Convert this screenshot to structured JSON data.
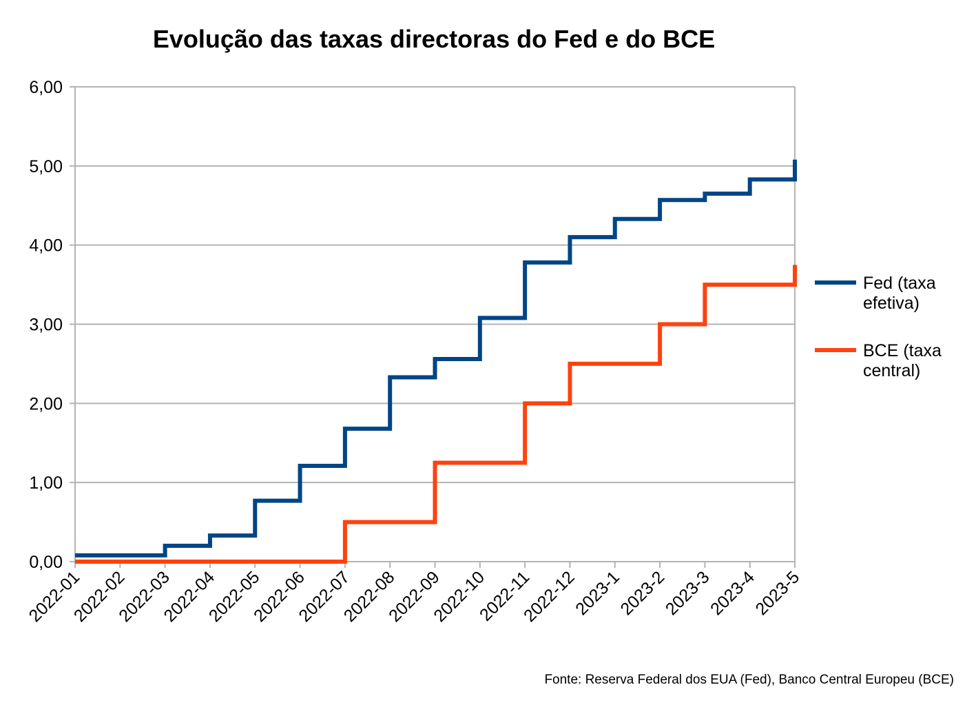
{
  "chart_data": {
    "type": "line",
    "step": true,
    "title": "Evolução das taxas directoras do Fed e do BCE",
    "source": "Fonte: Reserva Federal dos EUA (Fed), Banco Central Europeu (BCE)",
    "xlabel": "",
    "ylabel": "",
    "categories": [
      "2022-01",
      "2022-02",
      "2022-03",
      "2022-04",
      "2022-05",
      "2022-06",
      "2022-07",
      "2022-08",
      "2022-09",
      "2022-10",
      "2022-11",
      "2022-12",
      "2023-1",
      "2023-2",
      "2023-3",
      "2023-4",
      "2023-5"
    ],
    "ylim": [
      0,
      6
    ],
    "yticks": [
      "0,00",
      "1,00",
      "2,00",
      "3,00",
      "4,00",
      "5,00",
      "6,00"
    ],
    "grid": true,
    "legend_position": "right",
    "series": [
      {
        "name": "Fed (taxa efetiva)",
        "legend_lines": [
          "Fed (taxa",
          "efetiva)"
        ],
        "color": "#004586",
        "values": [
          0.08,
          0.08,
          0.2,
          0.33,
          0.77,
          1.21,
          1.68,
          2.33,
          2.56,
          3.08,
          3.78,
          4.1,
          4.33,
          4.57,
          4.65,
          4.83,
          5.08
        ]
      },
      {
        "name": "BCE (taxa central)",
        "legend_lines": [
          "BCE (taxa",
          "central)"
        ],
        "color": "#ff420e",
        "values": [
          0.0,
          0.0,
          0.0,
          0.0,
          0.0,
          0.0,
          0.5,
          0.5,
          1.25,
          1.25,
          2.0,
          2.5,
          2.5,
          3.0,
          3.5,
          3.5,
          3.75
        ]
      }
    ]
  }
}
